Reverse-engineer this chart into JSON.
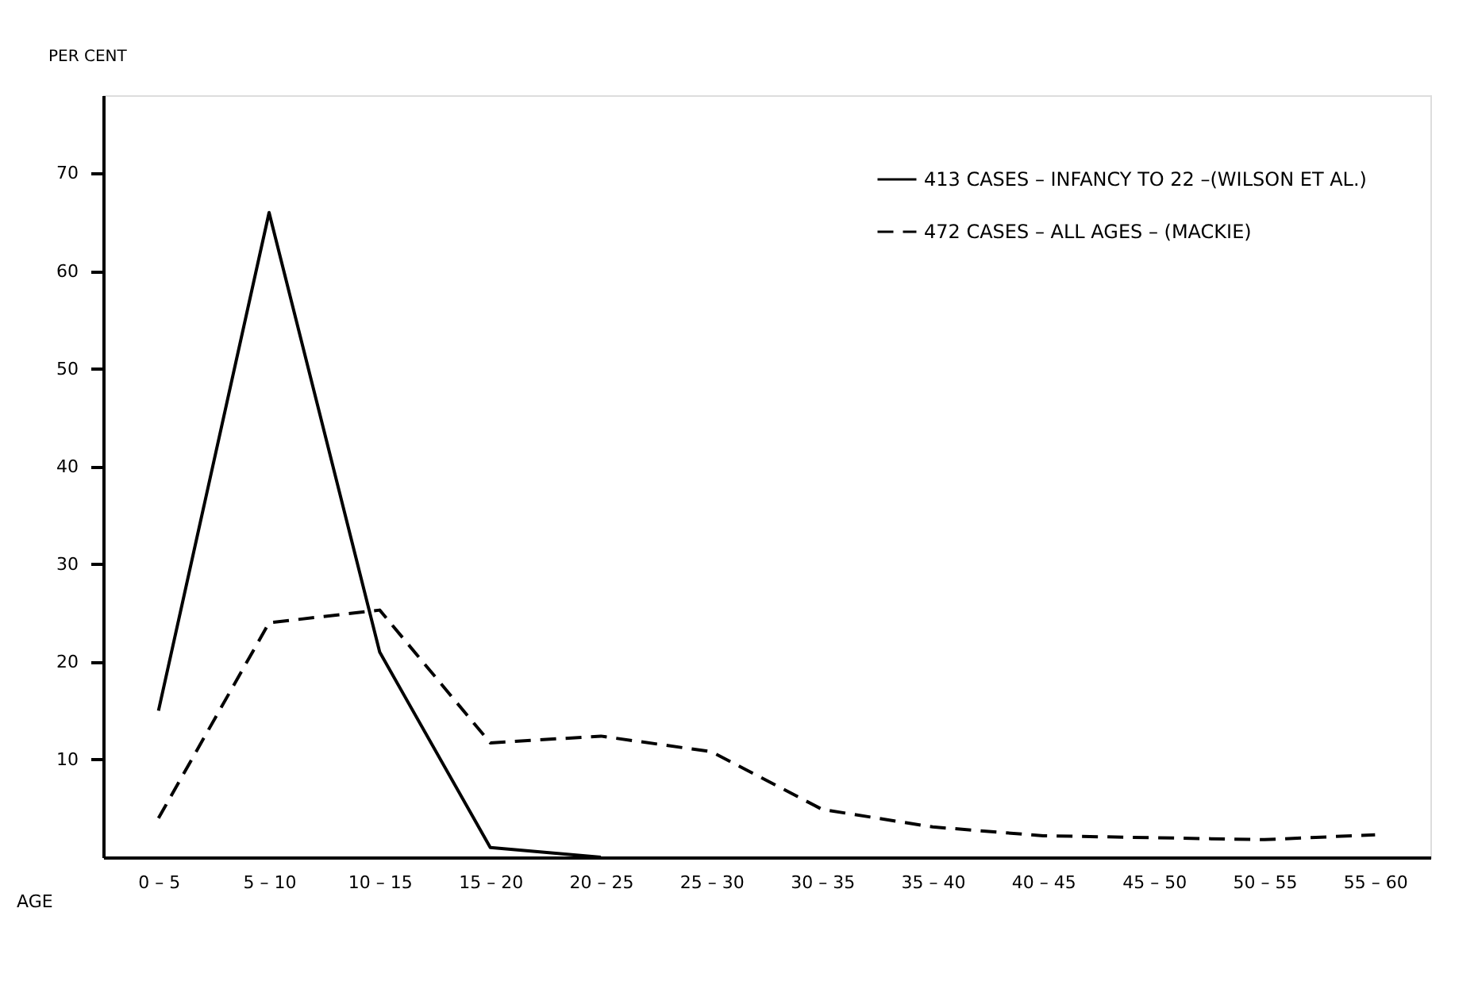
{
  "chart_data": {
    "type": "line",
    "xlabel": "AGE",
    "ylabel": "PER CENT",
    "categories": [
      "0 – 5",
      "5 – 10",
      "10 – 15",
      "15 – 20",
      "20 – 25",
      "25 – 30",
      "30 – 35",
      "35 – 40",
      "40 – 45",
      "45 – 50",
      "50 – 55",
      "55 – 60"
    ],
    "series": [
      {
        "name": "413 CASES – INFANCY TO 22 –(WILSON ET AL.)",
        "color": "#000000",
        "line_style": "solid",
        "values": [
          15,
          66,
          21,
          1,
          0,
          null,
          null,
          null,
          null,
          null,
          null,
          null
        ]
      },
      {
        "name": "472 CASES – ALL AGES – (MACKIE)",
        "color": "#000000",
        "line_style": "dashed",
        "values": [
          4,
          24,
          25.3,
          11.7,
          12.4,
          10.8,
          4.9,
          3.1,
          2.2,
          2.0,
          1.8,
          2.3
        ]
      }
    ],
    "ylim": [
      0,
      78
    ],
    "yticks": [
      10,
      20,
      30,
      40,
      50,
      60,
      70
    ],
    "grid": false,
    "legend": "top right",
    "marker": "none"
  }
}
